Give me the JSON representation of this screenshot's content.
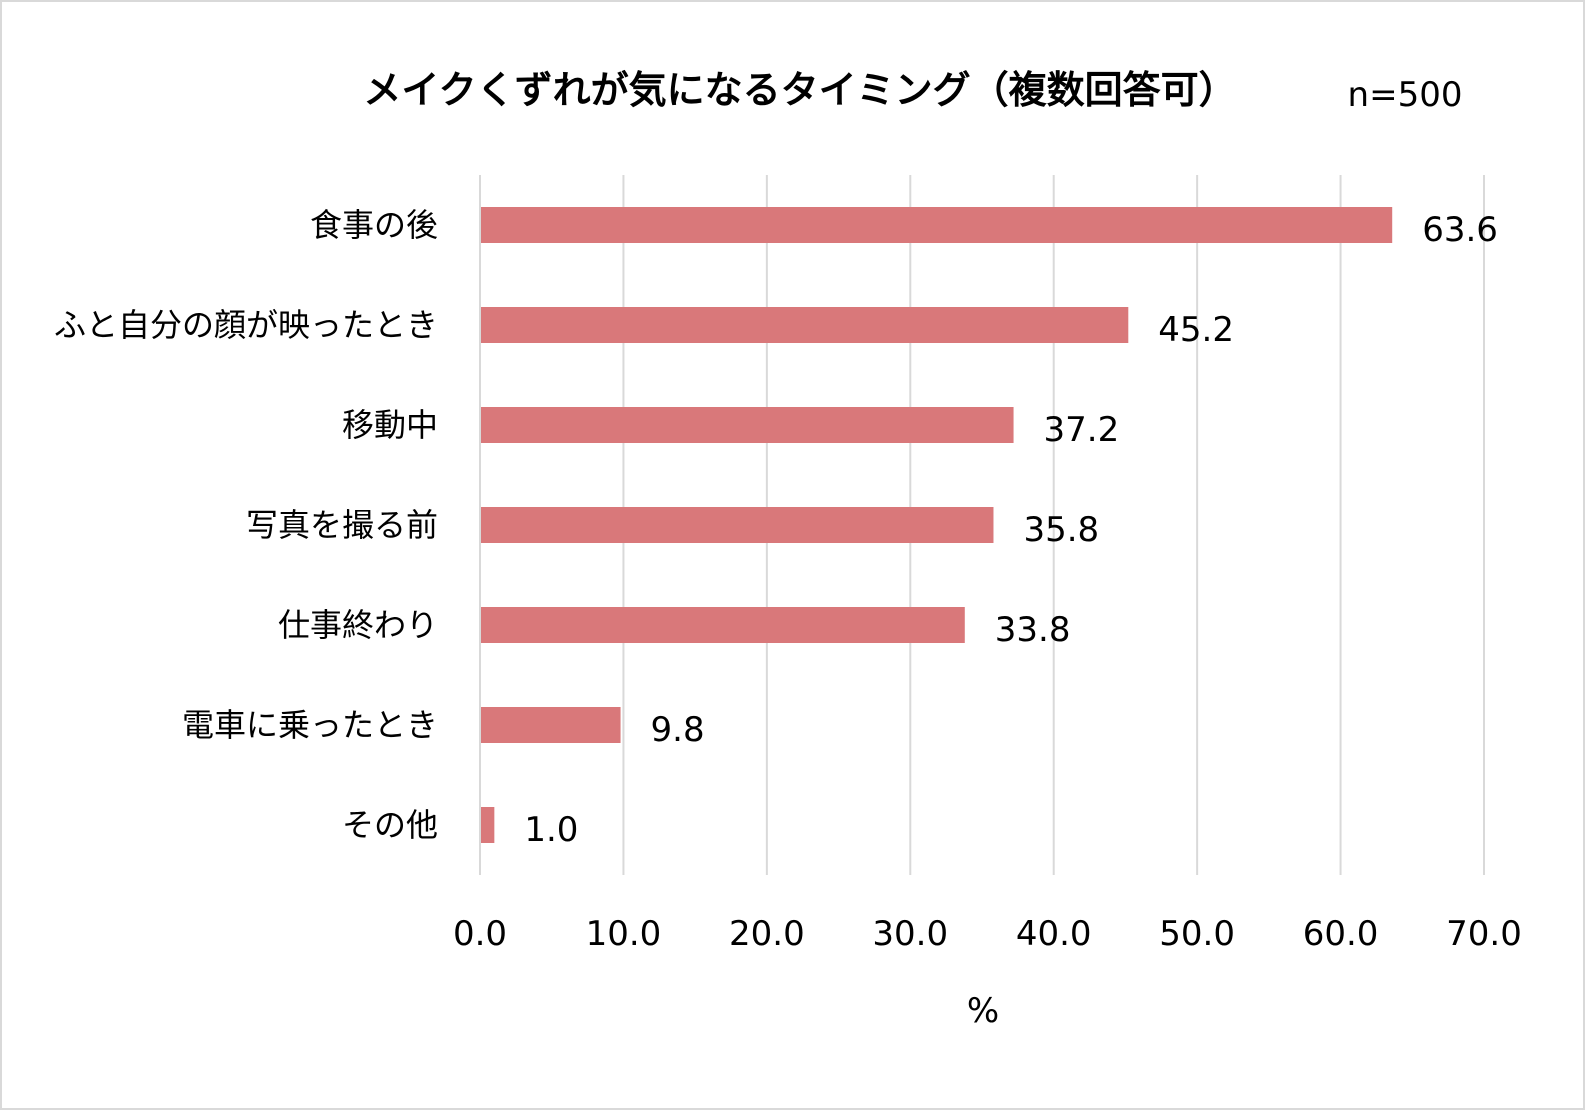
{
  "chart_data": {
    "type": "bar",
    "orientation": "horizontal",
    "title": "メイクくずれが気になるタイミング（複数回答可）",
    "sample_size": "n=500",
    "categories": [
      "食事の後",
      "ふと自分の顔が映ったとき",
      "移動中",
      "写真を撮る前",
      "仕事終わり",
      "電車に乗ったとき",
      "その他"
    ],
    "values": [
      63.6,
      45.2,
      37.2,
      35.8,
      33.8,
      9.8,
      1.0
    ],
    "value_labels": [
      "63.6",
      "45.2",
      "37.2",
      "35.8",
      "33.8",
      "9.8",
      "1.0"
    ],
    "xlabel": "%",
    "xlim": [
      0,
      70
    ],
    "xticks": [
      "0.0",
      "10.0",
      "20.0",
      "30.0",
      "40.0",
      "50.0",
      "60.0",
      "70.0"
    ],
    "grid": true,
    "bar_color": "#d9787a"
  }
}
